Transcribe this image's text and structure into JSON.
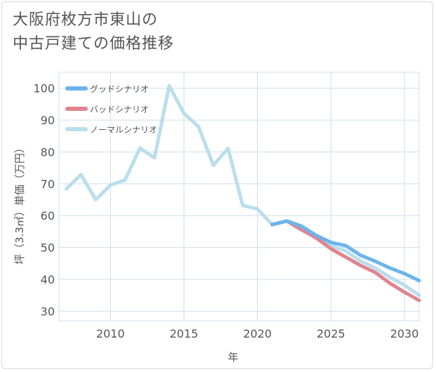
{
  "title_lines": [
    "大阪府枚方市東山の",
    "中古戸建ての価格推移"
  ],
  "chart_data": {
    "type": "line",
    "title": "大阪府枚方市東山の中古戸建ての価格推移",
    "xlabel": "年",
    "ylabel": "坪（3.3㎡）単価（万円）",
    "xlim": [
      2006.5,
      2031
    ],
    "ylim": [
      27,
      105
    ],
    "xticks": [
      2010,
      2015,
      2020,
      2025,
      2030
    ],
    "yticks": [
      30,
      40,
      50,
      60,
      70,
      80,
      90,
      100
    ],
    "grid": true,
    "legend_position": "top-left",
    "series": [
      {
        "name": "グッドシナリオ",
        "color": "#6cb4ec",
        "x": [
          2021,
          2022,
          2023,
          2024,
          2025,
          2026,
          2027,
          2028,
          2029,
          2030,
          2031
        ],
        "y": [
          57.2,
          58.3,
          56.7,
          53.8,
          51.6,
          50.6,
          47.6,
          45.7,
          43.6,
          41.8,
          39.6
        ]
      },
      {
        "name": "バッドシナリオ",
        "color": "#e0848e",
        "x": [
          2021,
          2022,
          2023,
          2024,
          2025,
          2026,
          2027,
          2028,
          2029,
          2030,
          2031
        ],
        "y": [
          57.2,
          58.3,
          55.6,
          53.0,
          49.6,
          47.0,
          44.4,
          42.2,
          38.8,
          36.0,
          33.4
        ]
      },
      {
        "name": "ノーマルシナリオ",
        "color": "#badeec",
        "x": [
          2007,
          2008,
          2009,
          2010,
          2011,
          2012,
          2013,
          2014,
          2015,
          2016,
          2017,
          2018,
          2019,
          2020,
          2021,
          2022,
          2023,
          2024,
          2025,
          2026,
          2027,
          2028,
          2029,
          2030,
          2031
        ],
        "y": [
          68.4,
          72.9,
          65.0,
          69.6,
          71.2,
          81.2,
          78.2,
          100.8,
          92.1,
          87.9,
          75.8,
          81.1,
          63.2,
          62.1,
          57.2,
          58.3,
          55.4,
          53.5,
          50.6,
          48.9,
          45.8,
          43.6,
          40.7,
          38.2,
          35.0
        ]
      }
    ]
  }
}
